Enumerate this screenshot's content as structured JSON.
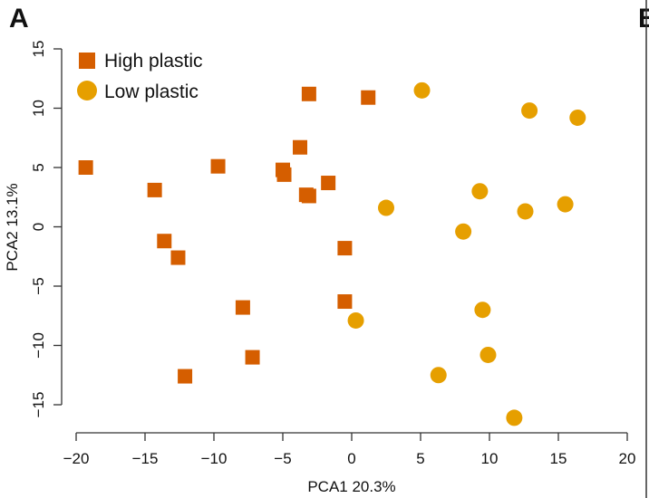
{
  "panel_label": "A",
  "next_panel_label": "B",
  "chart_data": {
    "type": "scatter",
    "xlabel": "PCA1 20.3%",
    "ylabel": "PCA2 13.1%",
    "xlim": [
      -20,
      20
    ],
    "ylim": [
      -15,
      15
    ],
    "xticks": [
      "−20",
      "−15",
      "−10",
      "−5",
      "0",
      "5",
      "10",
      "15",
      "20"
    ],
    "yticks": [
      "−15",
      "−10",
      "−5",
      "0",
      "5",
      "10",
      "15"
    ],
    "grid": false,
    "legend": "top-left",
    "series": [
      {
        "name": "High plastic",
        "marker": "square",
        "color": "#D55E00",
        "points": [
          [
            -19.3,
            5.0
          ],
          [
            -14.3,
            3.1
          ],
          [
            -13.6,
            -1.2
          ],
          [
            -12.6,
            -2.6
          ],
          [
            -12.1,
            -12.6
          ],
          [
            -9.7,
            5.1
          ],
          [
            -7.9,
            -6.8
          ],
          [
            -7.2,
            -11.0
          ],
          [
            -5.0,
            4.8
          ],
          [
            -4.9,
            4.4
          ],
          [
            -3.75,
            6.7
          ],
          [
            -3.3,
            2.7
          ],
          [
            -3.1,
            2.6
          ],
          [
            -3.1,
            11.2
          ],
          [
            -1.7,
            3.7
          ],
          [
            -0.5,
            -1.8
          ],
          [
            -0.5,
            -6.3
          ],
          [
            1.2,
            10.9
          ]
        ]
      },
      {
        "name": "Low plastic",
        "marker": "circle",
        "color": "#E69F00",
        "points": [
          [
            5.1,
            11.5
          ],
          [
            12.9,
            9.8
          ],
          [
            16.4,
            9.2
          ],
          [
            2.5,
            1.6
          ],
          [
            9.3,
            3.0
          ],
          [
            8.1,
            -0.4
          ],
          [
            12.6,
            1.3
          ],
          [
            15.5,
            1.9
          ],
          [
            0.3,
            -7.9
          ],
          [
            9.5,
            -7.0
          ],
          [
            9.9,
            -10.8
          ],
          [
            6.3,
            -12.5
          ],
          [
            11.8,
            -16.1
          ]
        ]
      }
    ]
  }
}
